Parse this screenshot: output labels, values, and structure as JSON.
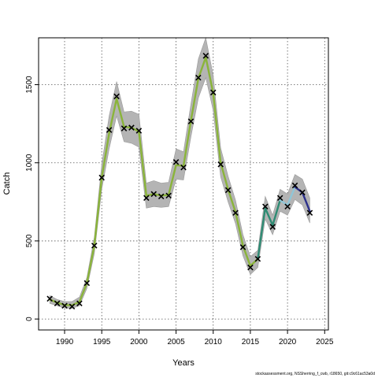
{
  "chart_data": {
    "type": "line",
    "xlabel": "Years",
    "ylabel": "Catch",
    "xlim": [
      1986.5,
      2025.5
    ],
    "ylim": [
      -70,
      1800
    ],
    "xticks": [
      1990,
      1995,
      2000,
      2005,
      2010,
      2015,
      2020,
      2025
    ],
    "yticks": [
      0,
      500,
      1000,
      1500
    ],
    "grid": true,
    "x": [
      1988,
      1989,
      1990,
      1991,
      1992,
      1993,
      1994,
      1995,
      1996,
      1997,
      1998,
      1999,
      2000,
      2001,
      2002,
      2003,
      2004,
      2005,
      2006,
      2007,
      2008,
      2009,
      2010,
      2011,
      2012,
      2013,
      2014,
      2015,
      2016,
      2017,
      2018,
      2019,
      2020,
      2021,
      2022,
      2023
    ],
    "observed": [
      130,
      100,
      85,
      80,
      100,
      230,
      470,
      905,
      1210,
      1425,
      1220,
      1225,
      1205,
      775,
      800,
      785,
      790,
      1005,
      970,
      1265,
      1545,
      1685,
      1450,
      990,
      825,
      680,
      460,
      330,
      385,
      720,
      590,
      775,
      720,
      855,
      810,
      680
    ],
    "series": [
      {
        "values": [
          125,
          105,
          90,
          88,
          110,
          230,
          470,
          905,
          1190,
          1410,
          1230,
          1225,
          1200,
          790,
          800,
          790,
          795,
          985,
          980,
          1270,
          1540,
          1675,
          1445,
          1000,
          830,
          685,
          470,
          340,
          385,
          710,
          600,
          760,
          730,
          845,
          810,
          690
        ]
      }
    ],
    "band_upper": [
      150,
      125,
      112,
      112,
      140,
      265,
      525,
      990,
      1300,
      1520,
      1325,
      1330,
      1310,
      870,
      885,
      870,
      875,
      1090,
      1070,
      1375,
      1665,
      1800,
      1560,
      1095,
      915,
      760,
      540,
      400,
      440,
      785,
      665,
      830,
      800,
      925,
      895,
      775
    ],
    "band_lower": [
      100,
      85,
      70,
      68,
      85,
      195,
      420,
      830,
      1090,
      1300,
      1135,
      1125,
      1100,
      710,
      720,
      715,
      720,
      895,
      890,
      1165,
      1415,
      1545,
      1335,
      910,
      750,
      610,
      405,
      285,
      330,
      640,
      540,
      690,
      665,
      765,
      730,
      615
    ]
  },
  "footer_text": "stockassessment.org, NSSherring_f_cwb, r18650, git:c9c61ac53a0d"
}
